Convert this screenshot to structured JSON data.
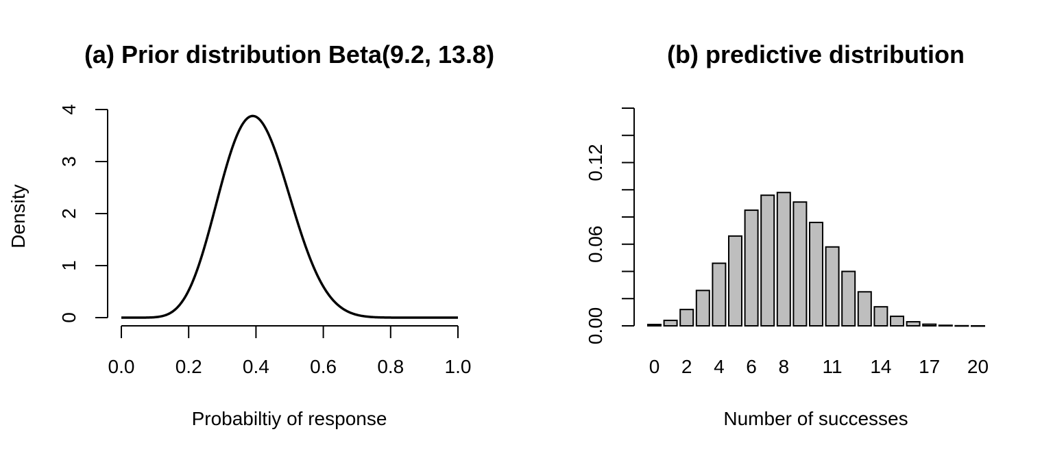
{
  "chart_data": [
    {
      "type": "line",
      "title": "(a) Prior distribution Beta(9.2, 13.8)",
      "xlabel": "Probabiltiy of response",
      "ylabel": "Density",
      "distribution": {
        "family": "beta",
        "alpha": 9.2,
        "beta": 13.8
      },
      "xlim": [
        0,
        1
      ],
      "ylim": [
        0,
        4
      ],
      "x_ticks": [
        "0.0",
        "0.2",
        "0.4",
        "0.6",
        "0.8",
        "1.0"
      ],
      "y_ticks": [
        "0",
        "1",
        "2",
        "3",
        "4"
      ],
      "series": [
        {
          "x": [
            0.0,
            0.05,
            0.1,
            0.15,
            0.2,
            0.25,
            0.3,
            0.35,
            0.4,
            0.45,
            0.5,
            0.55,
            0.6,
            0.65,
            0.7,
            0.75,
            0.8,
            0.85,
            0.9,
            0.95,
            1.0
          ],
          "y": [
            0.0,
            0.0,
            0.04,
            0.3,
            1.0,
            2.1,
            3.2,
            3.8,
            3.85,
            3.3,
            2.4,
            1.45,
            0.72,
            0.28,
            0.08,
            0.02,
            0.0,
            0.0,
            0.0,
            0.0,
            0.0
          ]
        }
      ],
      "grid": false
    },
    {
      "type": "bar",
      "title": "(b) predictive distribution",
      "xlabel": "Number of successes",
      "ylabel": "",
      "categories": [
        0,
        1,
        2,
        3,
        4,
        5,
        6,
        7,
        8,
        9,
        10,
        11,
        12,
        13,
        14,
        15,
        16,
        17,
        18,
        19,
        20
      ],
      "values": [
        0.001,
        0.004,
        0.012,
        0.026,
        0.046,
        0.066,
        0.085,
        0.096,
        0.098,
        0.091,
        0.076,
        0.058,
        0.04,
        0.025,
        0.014,
        0.007,
        0.003,
        0.0012,
        0.0004,
        0.0001,
        2e-05
      ],
      "x_tick_labels": [
        "0",
        "2",
        "4",
        "6",
        "8",
        "11",
        "14",
        "17",
        "20"
      ],
      "x_tick_categories": [
        0,
        2,
        4,
        6,
        8,
        11,
        14,
        17,
        20
      ],
      "ylim": [
        0,
        0.16
      ],
      "y_ticks_all": [
        0,
        0.02,
        0.04,
        0.06,
        0.08,
        0.1,
        0.12,
        0.14,
        0.16
      ],
      "y_tick_labels": {
        "0": "0.00",
        "0.06": "0.06",
        "0.12": "0.12"
      },
      "grid": false
    }
  ]
}
